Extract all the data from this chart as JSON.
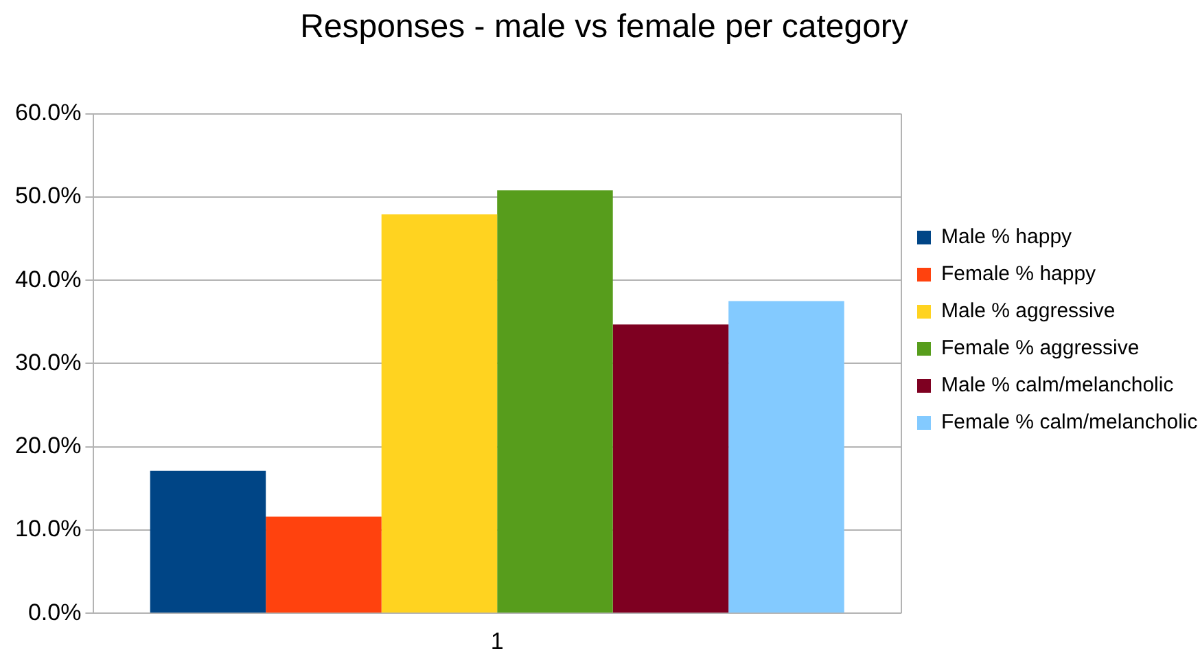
{
  "chart_data": {
    "type": "bar",
    "title": "Responses - male vs female per category",
    "categories": [
      "1"
    ],
    "series": [
      {
        "name": "Male % happy",
        "color": "#004586",
        "values": [
          17.1
        ]
      },
      {
        "name": "Female % happy",
        "color": "#ff420e",
        "values": [
          11.6
        ]
      },
      {
        "name": "Male % aggressive",
        "color": "#ffd320",
        "values": [
          47.9
        ]
      },
      {
        "name": "Female % aggressive",
        "color": "#579d1c",
        "values": [
          50.8
        ]
      },
      {
        "name": "Male % calm/melancholic",
        "color": "#7e0021",
        "values": [
          34.7
        ]
      },
      {
        "name": "Female % calm/melancholic",
        "color": "#83caff",
        "values": [
          37.5
        ]
      }
    ],
    "ylim": [
      0,
      60
    ],
    "yticks": [
      {
        "value": 0,
        "label": "0.0%"
      },
      {
        "value": 10,
        "label": "10.0%"
      },
      {
        "value": 20,
        "label": "20.0%"
      },
      {
        "value": 30,
        "label": "30.0%"
      },
      {
        "value": 40,
        "label": "40.0%"
      },
      {
        "value": 50,
        "label": "50.0%"
      },
      {
        "value": 60,
        "label": "60.0%"
      }
    ],
    "grid": "y",
    "legend": "right"
  }
}
